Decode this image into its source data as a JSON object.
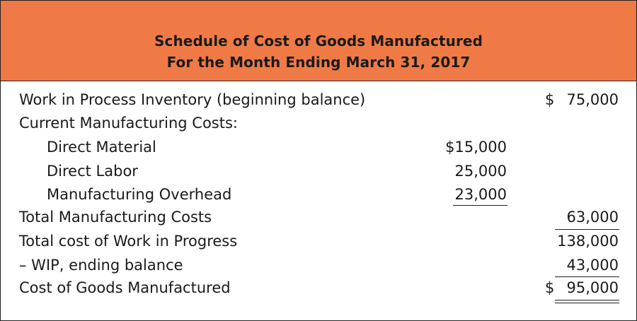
{
  "header": {
    "title": "Schedule of Cost of Goods Manufactured",
    "subtitle": "For the Month Ending March 31, 2017",
    "background_color": "#f07a46"
  },
  "rows": [
    {
      "label": "Work in Process Inventory (beginning balance)",
      "mid": "",
      "right_symbol": "$",
      "right": "75,000"
    },
    {
      "label": "Current Manufacturing Costs:",
      "mid": "",
      "right_symbol": "",
      "right": ""
    },
    {
      "label": "Direct Material",
      "mid": "$15,000",
      "right_symbol": "",
      "right": ""
    },
    {
      "label": "Direct Labor",
      "mid": "25,000",
      "right_symbol": "",
      "right": ""
    },
    {
      "label": "Manufacturing Overhead",
      "mid": "23,000",
      "right_symbol": "",
      "right": ""
    },
    {
      "label": "Total Manufacturing Costs",
      "mid": "",
      "right_symbol": "",
      "right": "63,000"
    },
    {
      "label": "Total cost of Work in Progress",
      "mid": "",
      "right_symbol": "",
      "right": "138,000"
    },
    {
      "label": "– WIP, ending balance",
      "mid": "",
      "right_symbol": "",
      "right": "43,000"
    },
    {
      "label": "Cost of Goods Manufactured",
      "mid": "",
      "right_symbol": "$",
      "right": "95,000"
    }
  ]
}
